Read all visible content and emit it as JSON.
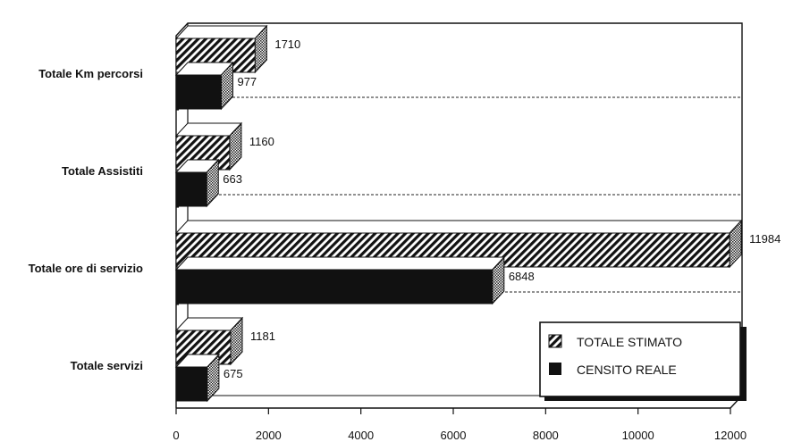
{
  "chart_data": {
    "type": "bar",
    "orientation": "horizontal",
    "three_d": true,
    "categories": [
      "Totale Km percorsi",
      "Totale Assistiti",
      "Totale ore di servizio",
      "Totale servizi"
    ],
    "series": [
      {
        "name": "TOTALE STIMATO",
        "values": [
          1710,
          1160,
          11984,
          1181
        ],
        "pattern": "diagonal-hatch"
      },
      {
        "name": "CENSITO REALE",
        "values": [
          977,
          663,
          6848,
          675
        ],
        "pattern": "solid-black"
      }
    ],
    "x_ticks": [
      "0",
      "2000",
      "4000",
      "6000",
      "8000",
      "10000",
      "12000"
    ],
    "xlim": [
      0,
      12000
    ],
    "grid": false,
    "legend": "bottom-right",
    "colors": {
      "ink": "#111111",
      "background": "#ffffff",
      "separator": "#222222"
    }
  }
}
